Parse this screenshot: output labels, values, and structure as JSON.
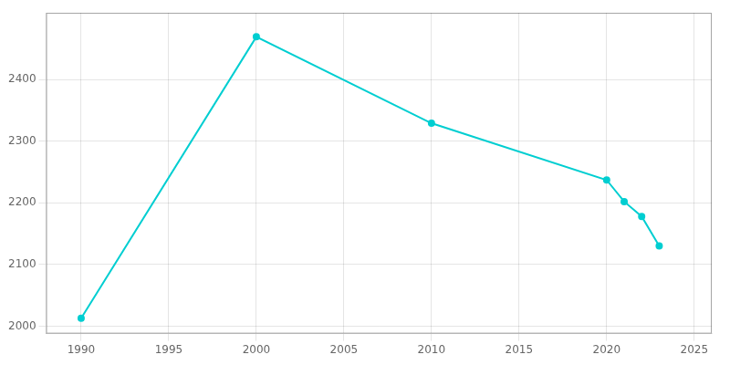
{
  "chart_data": {
    "type": "line",
    "x": [
      1990,
      2000,
      2010,
      2020,
      2021,
      2022,
      2023
    ],
    "values": [
      2013,
      2469,
      2329,
      2237,
      2202,
      2178,
      2130
    ],
    "color": "#00CED1",
    "marker": "circle",
    "xlim": [
      1988,
      2026
    ],
    "ylim": [
      1988,
      2508
    ],
    "xticks": [
      1990,
      1995,
      2000,
      2005,
      2010,
      2015,
      2020,
      2025
    ],
    "yticks": [
      2000,
      2100,
      2200,
      2300,
      2400
    ],
    "grid": true
  }
}
